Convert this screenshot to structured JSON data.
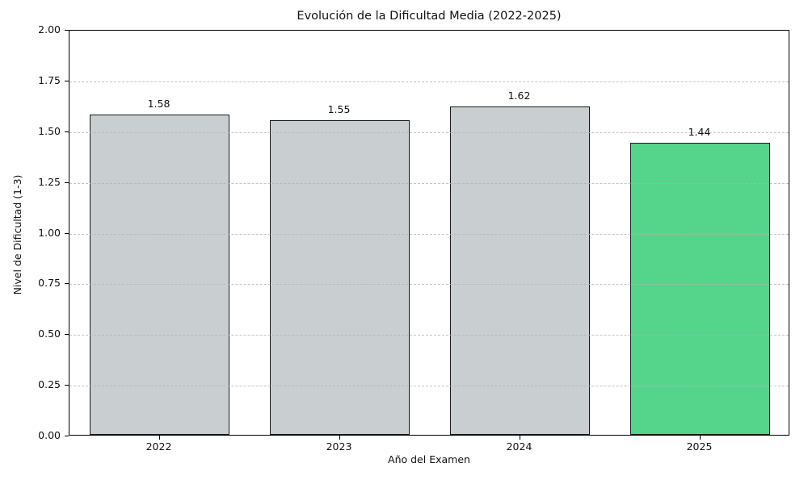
{
  "chart_data": {
    "type": "bar",
    "title": "Evolución de la Dificultad Media (2022-2025)",
    "xlabel": "Año del Examen",
    "ylabel": "Nivel de Dificultad (1-3)",
    "categories": [
      "2022",
      "2023",
      "2024",
      "2025"
    ],
    "values": [
      1.58,
      1.55,
      1.62,
      1.44
    ],
    "value_labels": [
      "1.58",
      "1.55",
      "1.62",
      "1.44"
    ],
    "bar_colors": [
      "#c9ced1",
      "#c9ced1",
      "#c9ced1",
      "#55d58b"
    ],
    "bar_edge_color": "#1a1a1a",
    "ylim": [
      0,
      2
    ],
    "ytick_step": 0.25,
    "ytick_labels": [
      "0.00",
      "0.25",
      "0.50",
      "0.75",
      "1.00",
      "1.25",
      "1.50",
      "1.75",
      "2.00"
    ],
    "legend": "none",
    "grid": "horizontal-dashed-over-bars",
    "grid_color": "#b2b2b2",
    "background_color": "#ffffff",
    "text_color": "#111111"
  }
}
